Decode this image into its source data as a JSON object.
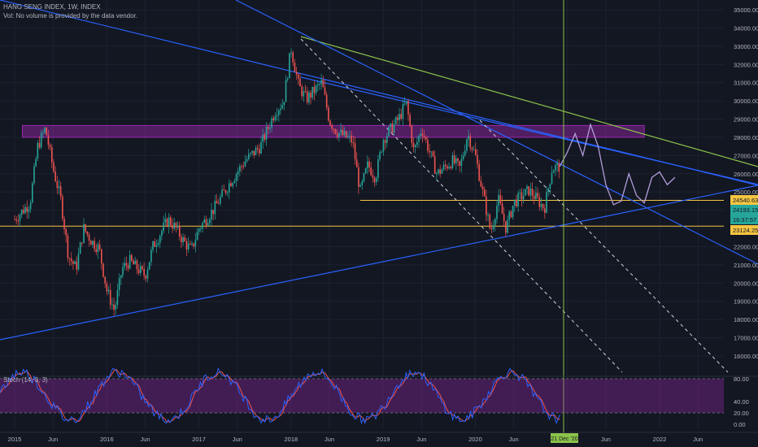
{
  "header": {
    "title": "HANG SENG INDEX, 1W, INDEX",
    "volume_note": "Vol: No volume is provided by the data vendor."
  },
  "stoch_label": "Stoch (14, 3, 3)",
  "colors": {
    "background": "#131722",
    "up": "#26a69a",
    "down": "#ef5350",
    "trend_blue": "#2962ff",
    "trend_green": "#8bc34a",
    "zone": "#9c27b0",
    "support_yellow": "#f5c542",
    "projection": "#b39ddb",
    "stoch_k": "#2962ff",
    "stoch_d": "#ef5350",
    "vline": "#8bc34a"
  },
  "chart_data": [
    {
      "type": "candlestick",
      "x_ticks": [
        "2015",
        "Jun",
        "2016",
        "Jun",
        "2017",
        "Jun",
        "2018",
        "Jun",
        "2019",
        "Jun",
        "2020",
        "Jun",
        "21 Dec '20",
        "Jun",
        "2022",
        "Jun"
      ],
      "y_ticks": [
        35000,
        34000,
        33000,
        32000,
        31000,
        30000,
        29000,
        28000,
        27000,
        26000,
        25000,
        24000,
        23000,
        22000,
        21000,
        20000,
        19000,
        18000,
        17000,
        16000
      ],
      "ylim": [
        15500,
        35500
      ],
      "price_labels": [
        {
          "text": "24540.63",
          "value": 24540.63,
          "color": "#f5c542"
        },
        {
          "text": "24193.15",
          "value": 24193.15,
          "color": "#26a69a"
        },
        {
          "text": "16:37:57",
          "value": 23700,
          "color": "#26a69a"
        },
        {
          "text": "23124.25",
          "value": 23124.25,
          "color": "#f5c542"
        }
      ],
      "vline_label": "21 Dec '20",
      "price_series": [
        [
          "2015-01",
          23500
        ],
        [
          "2015-03",
          24400
        ],
        [
          "2015-04",
          27500
        ],
        [
          "2015-05",
          28500
        ],
        [
          "2015-06",
          26300
        ],
        [
          "2015-07",
          24600
        ],
        [
          "2015-08",
          21500
        ],
        [
          "2015-09",
          20800
        ],
        [
          "2015-10",
          23000
        ],
        [
          "2015-11",
          22300
        ],
        [
          "2015-12",
          21900
        ],
        [
          "2016-01",
          19600
        ],
        [
          "2016-02",
          18500
        ],
        [
          "2016-03",
          20800
        ],
        [
          "2016-04",
          21200
        ],
        [
          "2016-06",
          20400
        ],
        [
          "2016-07",
          22000
        ],
        [
          "2016-09",
          23500
        ],
        [
          "2016-10",
          23000
        ],
        [
          "2016-11",
          22300
        ],
        [
          "2016-12",
          21800
        ],
        [
          "2017-01",
          23000
        ],
        [
          "2017-03",
          24100
        ],
        [
          "2017-05",
          25500
        ],
        [
          "2017-07",
          26700
        ],
        [
          "2017-09",
          27500
        ],
        [
          "2017-11",
          29500
        ],
        [
          "2017-12",
          29900
        ],
        [
          "2018-01",
          32900
        ],
        [
          "2018-02",
          30800
        ],
        [
          "2018-03",
          30100
        ],
        [
          "2018-05",
          31000
        ],
        [
          "2018-06",
          28900
        ],
        [
          "2018-07",
          28300
        ],
        [
          "2018-09",
          27800
        ],
        [
          "2018-10",
          25000
        ],
        [
          "2018-11",
          26500
        ],
        [
          "2018-12",
          25800
        ],
        [
          "2019-01",
          27900
        ],
        [
          "2019-03",
          29000
        ],
        [
          "2019-04",
          29900
        ],
        [
          "2019-05",
          27200
        ],
        [
          "2019-06",
          28500
        ],
        [
          "2019-08",
          26000
        ],
        [
          "2019-10",
          26700
        ],
        [
          "2019-11",
          26300
        ],
        [
          "2019-12",
          28200
        ],
        [
          "2020-01",
          27000
        ],
        [
          "2020-03",
          22800
        ],
        [
          "2020-04",
          24600
        ],
        [
          "2020-05",
          23000
        ],
        [
          "2020-06",
          24400
        ],
        [
          "2020-08",
          25100
        ],
        [
          "2020-10",
          24100
        ],
        [
          "2020-11",
          26300
        ],
        [
          "2020-12",
          26400
        ]
      ],
      "projection": [
        [
          "2021-01",
          27200
        ],
        [
          "2021-02",
          28200
        ],
        [
          "2021-03",
          27000
        ],
        [
          "2021-04",
          28700
        ],
        [
          "2021-05",
          27500
        ],
        [
          "2021-06",
          25400
        ],
        [
          "2021-07",
          24300
        ],
        [
          "2021-08",
          24500
        ],
        [
          "2021-09",
          26000
        ],
        [
          "2021-10",
          24800
        ],
        [
          "2021-11",
          24400
        ],
        [
          "2021-12",
          25800
        ],
        [
          "2022-01",
          26100
        ],
        [
          "2022-02",
          25400
        ],
        [
          "2022-03",
          25800
        ]
      ],
      "horizontal_levels": [
        {
          "value": 24540.63,
          "color": "#f5c542"
        },
        {
          "value": 23124.25,
          "color": "#f5c542"
        }
      ],
      "zone": {
        "from": "2015-02",
        "to": "2021-11",
        "low": 28000,
        "high": 28650
      }
    },
    {
      "type": "line",
      "series_label": "Stoch (14, 3, 3)",
      "y_ticks": [
        80.0,
        40.0,
        20.0,
        0.0
      ],
      "ylim": [
        0,
        100
      ],
      "band": [
        20,
        80
      ]
    }
  ]
}
